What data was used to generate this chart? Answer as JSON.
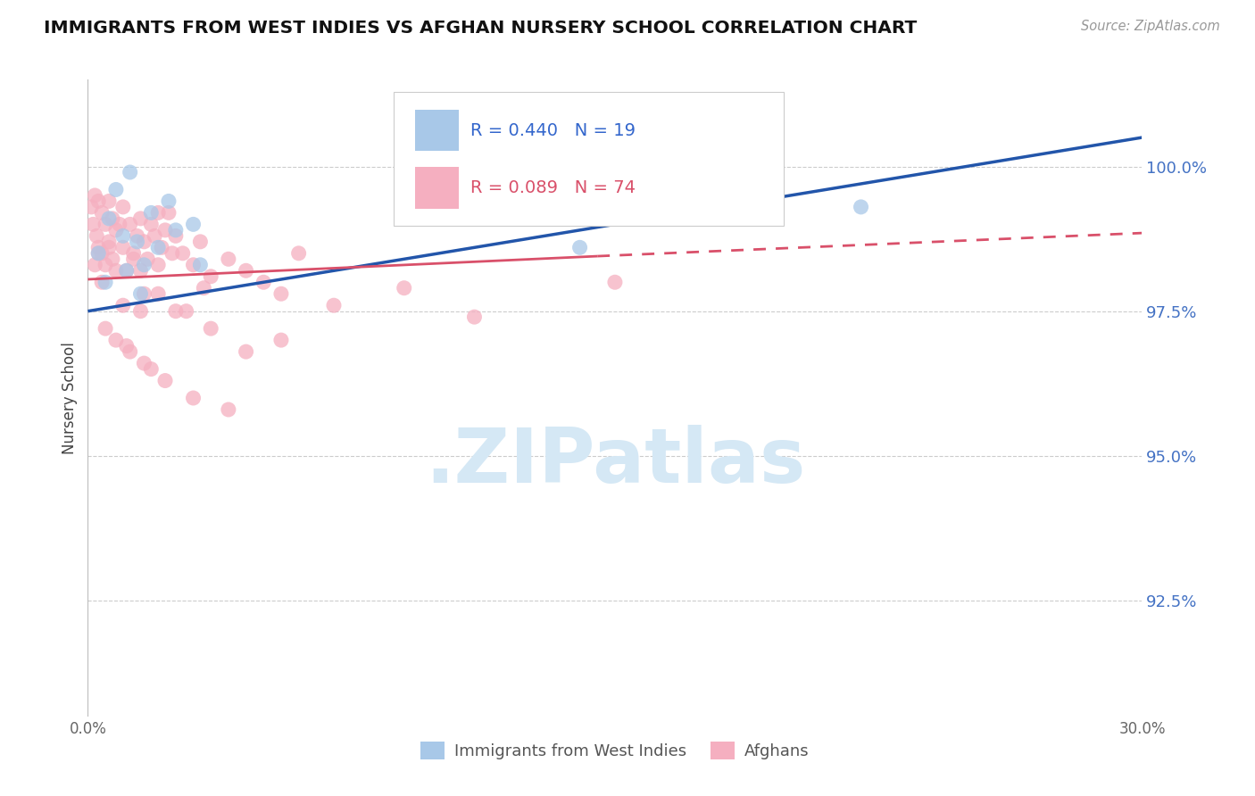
{
  "title": "IMMIGRANTS FROM WEST INDIES VS AFGHAN NURSERY SCHOOL CORRELATION CHART",
  "source_text": "Source: ZipAtlas.com",
  "ylabel": "Nursery School",
  "ytick_vals": [
    92.5,
    95.0,
    97.5,
    100.0
  ],
  "xlim": [
    0.0,
    30.0
  ],
  "ylim": [
    90.5,
    101.5
  ],
  "legend_label_blue": "Immigrants from West Indies",
  "legend_label_pink": "Afghans",
  "blue_color": "#a8c8e8",
  "pink_color": "#f5afc0",
  "trend_blue_color": "#2255aa",
  "trend_pink_color": "#d9506a",
  "watermark_color": "#d5e8f5",
  "blue_trend_y0": 97.5,
  "blue_trend_y1": 100.5,
  "pink_solid_x0": 0.0,
  "pink_solid_y0": 98.05,
  "pink_solid_x1": 14.5,
  "pink_solid_y1": 98.45,
  "pink_dash_x0": 14.5,
  "pink_dash_y0": 98.45,
  "pink_dash_x1": 30.0,
  "pink_dash_y1": 98.85,
  "blue_x": [
    0.3,
    0.5,
    0.8,
    1.0,
    1.2,
    1.5,
    1.6,
    1.8,
    2.0,
    2.3,
    2.5,
    3.0,
    3.2,
    14.0,
    18.0,
    22.0,
    0.6,
    1.1,
    1.4
  ],
  "blue_y": [
    98.5,
    98.0,
    99.6,
    98.8,
    99.9,
    97.8,
    98.3,
    99.2,
    98.6,
    99.4,
    98.9,
    99.0,
    98.3,
    98.6,
    100.8,
    99.3,
    99.1,
    98.2,
    98.7
  ],
  "pink_x": [
    0.1,
    0.15,
    0.2,
    0.25,
    0.3,
    0.3,
    0.4,
    0.4,
    0.5,
    0.5,
    0.6,
    0.6,
    0.7,
    0.7,
    0.8,
    0.9,
    1.0,
    1.0,
    1.1,
    1.2,
    1.3,
    1.4,
    1.5,
    1.5,
    1.6,
    1.7,
    1.8,
    1.9,
    2.0,
    2.0,
    2.1,
    2.2,
    2.3,
    2.4,
    2.5,
    2.7,
    3.0,
    3.2,
    3.5,
    4.0,
    4.5,
    5.0,
    5.5,
    6.0,
    1.0,
    1.5,
    2.0,
    2.8,
    1.2,
    1.8,
    0.5,
    0.8,
    1.1,
    1.6,
    2.2,
    3.0,
    4.0,
    3.3,
    7.0,
    9.0,
    11.0,
    15.0,
    0.3,
    0.2,
    0.4,
    0.6,
    0.8,
    1.3,
    1.6,
    2.5,
    3.5,
    4.5,
    5.5
  ],
  "pink_y": [
    99.3,
    99.0,
    99.5,
    98.8,
    99.4,
    98.6,
    99.2,
    98.5,
    99.0,
    98.3,
    99.4,
    98.7,
    99.1,
    98.4,
    98.9,
    99.0,
    98.6,
    99.3,
    98.2,
    99.0,
    98.5,
    98.8,
    98.2,
    99.1,
    98.7,
    98.4,
    99.0,
    98.8,
    98.3,
    99.2,
    98.6,
    98.9,
    99.2,
    98.5,
    98.8,
    98.5,
    98.3,
    98.7,
    98.1,
    98.4,
    98.2,
    98.0,
    97.8,
    98.5,
    97.6,
    97.5,
    97.8,
    97.5,
    96.8,
    96.5,
    97.2,
    97.0,
    96.9,
    96.6,
    96.3,
    96.0,
    95.8,
    97.9,
    97.6,
    97.9,
    97.4,
    98.0,
    98.5,
    98.3,
    98.0,
    98.6,
    98.2,
    98.4,
    97.8,
    97.5,
    97.2,
    96.8,
    97.0
  ]
}
